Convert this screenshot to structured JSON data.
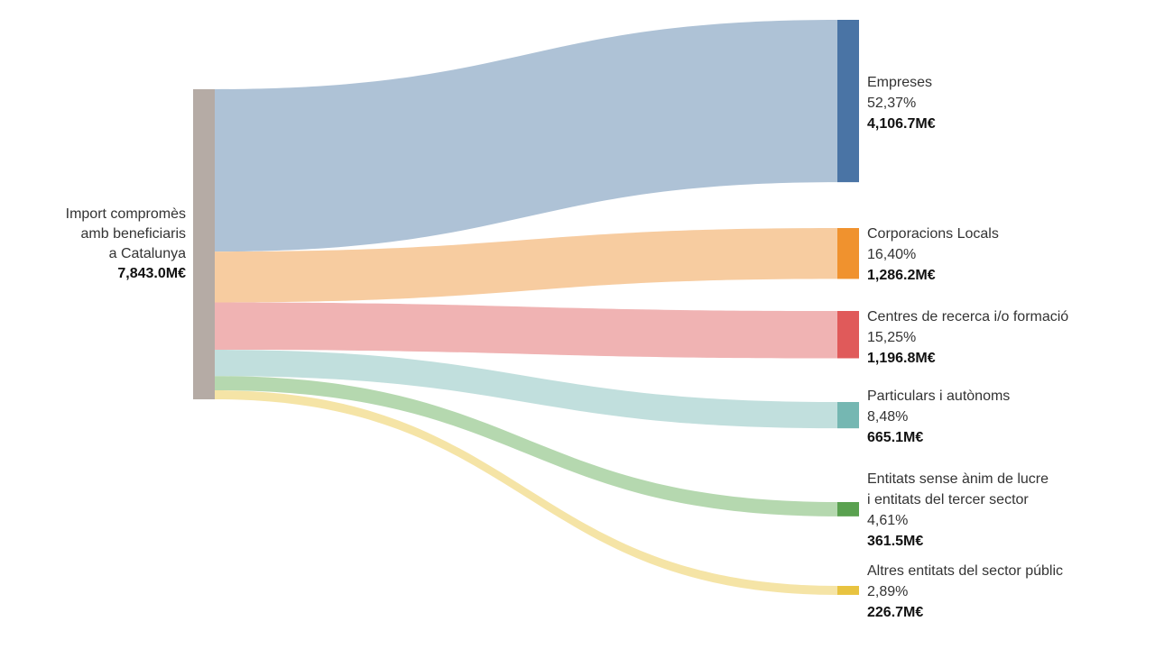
{
  "chart_data": {
    "type": "sankey",
    "unit": "M€",
    "source": {
      "label_lines": [
        "Import compromès",
        "amb beneficiaris",
        "a Catalunya"
      ],
      "value": 7843.0,
      "value_label": "7,843.0M€",
      "color": "#b5aba5"
    },
    "targets": [
      {
        "label_lines": [
          "Empreses"
        ],
        "pct": "52,37%",
        "value": 4106.7,
        "value_label": "4,106.7M€",
        "color": "#4a74a5",
        "link_color": "#aec2d6"
      },
      {
        "label_lines": [
          "Corporacions Locals"
        ],
        "pct": "16,40%",
        "value": 1286.2,
        "value_label": "1,286.2M€",
        "color": "#f0922e",
        "link_color": "#f7cca0"
      },
      {
        "label_lines": [
          "Centres de recerca i/o formació"
        ],
        "pct": "15,25%",
        "value": 1196.8,
        "value_label": "1,196.8M€",
        "color": "#e05a5a",
        "link_color": "#f0b3b3"
      },
      {
        "label_lines": [
          "Particulars i autònoms"
        ],
        "pct": "8,48%",
        "value": 665.1,
        "value_label": "665.1M€",
        "color": "#75b7b2",
        "link_color": "#c1dfdd"
      },
      {
        "label_lines": [
          "Entitats sense ànim de lucre",
          "i entitats del tercer sector"
        ],
        "pct": "4,61%",
        "value": 361.5,
        "value_label": "361.5M€",
        "color": "#5aa150",
        "link_color": "#b5d8af"
      },
      {
        "label_lines": [
          "Altres entitats del sector públic"
        ],
        "pct": "2,89%",
        "value": 226.7,
        "value_label": "226.7M€",
        "color": "#e8c340",
        "link_color": "#f5e4a6"
      }
    ]
  }
}
